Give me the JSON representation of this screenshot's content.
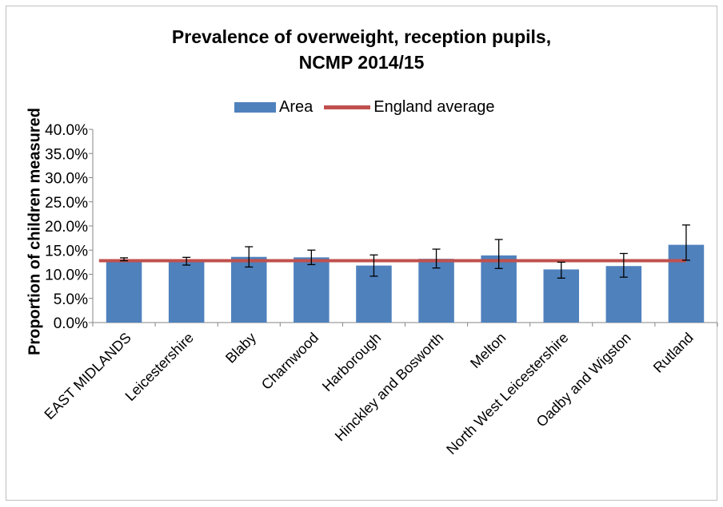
{
  "chart_data": {
    "type": "bar",
    "title_lines": [
      "Prevalence of overweight, reception pupils,",
      "NCMP 2014/15"
    ],
    "ylabel": "Proportion of children measured",
    "xlabel": "",
    "ylim": [
      0,
      40
    ],
    "ytick_labels": [
      "0.0%",
      "5.0%",
      "10.0%",
      "15.0%",
      "20.0%",
      "25.0%",
      "30.0%",
      "35.0%",
      "40.0%"
    ],
    "ytick_values": [
      0,
      5,
      10,
      15,
      20,
      25,
      30,
      35,
      40
    ],
    "categories": [
      "EAST MIDLANDS",
      "Leicestershire",
      "Blaby",
      "Charnwood",
      "Harborough",
      "Hinckley and Bosworth",
      "Melton",
      "North West Leicestershire",
      "Oadby and Wigston",
      "Rutland"
    ],
    "series": [
      {
        "name": "Area",
        "color": "#4f81bd",
        "values": [
          13.1,
          12.7,
          13.6,
          13.5,
          11.8,
          13.2,
          13.9,
          11.0,
          11.7,
          16.1
        ],
        "error_low": [
          12.8,
          11.9,
          11.5,
          12.0,
          9.6,
          11.3,
          11.2,
          9.2,
          9.4,
          12.9
        ],
        "error_high": [
          13.4,
          13.5,
          15.7,
          15.0,
          14.0,
          15.2,
          17.2,
          12.5,
          14.3,
          20.2
        ]
      },
      {
        "name": "England average",
        "color": "#c0504d",
        "type": "line",
        "value": 12.8
      }
    ],
    "legend_position": "top",
    "grid": false
  }
}
